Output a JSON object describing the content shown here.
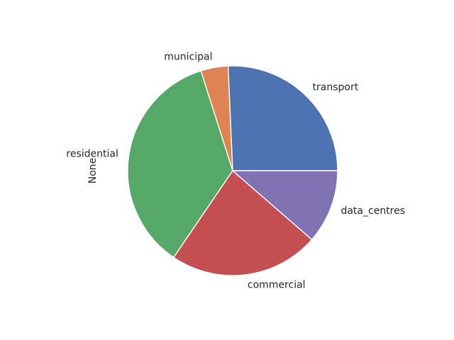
{
  "chart_data": {
    "type": "pie",
    "categories": [
      "transport",
      "municipal",
      "residential",
      "commercial",
      "data_centres"
    ],
    "values": [
      25.7,
      4.2,
      35.6,
      23.1,
      11.4
    ],
    "ylabel": "None",
    "start_angle_deg": 0,
    "direction": "counterclockwise",
    "colors": [
      "#4c72b0",
      "#dd8452",
      "#55a868",
      "#c44e52",
      "#8172b3"
    ]
  }
}
